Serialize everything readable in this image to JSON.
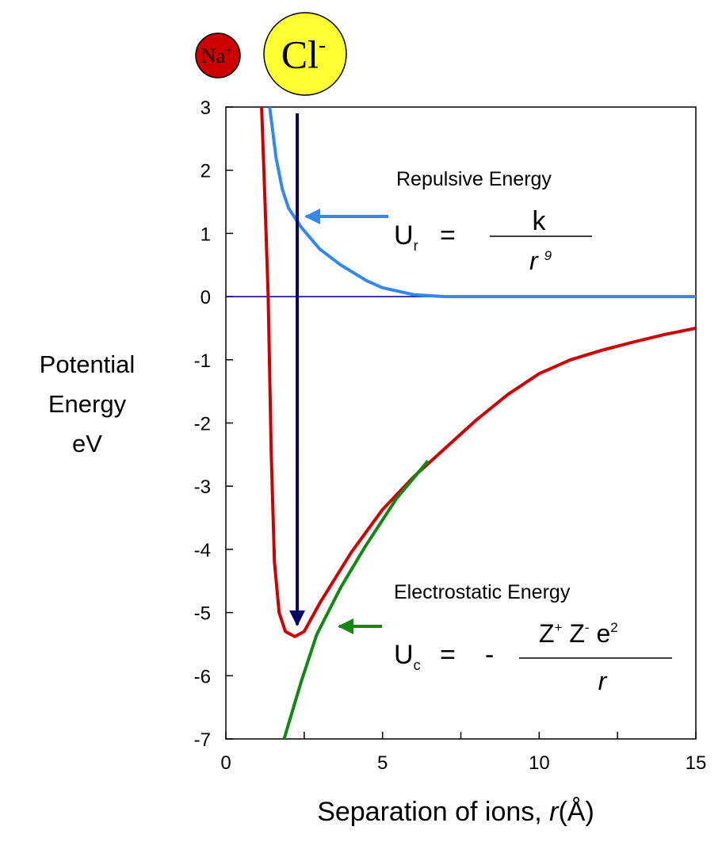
{
  "chart_data": {
    "type": "line",
    "ions": [
      {
        "label": "Na",
        "charge": "+",
        "color": "#cc0000"
      },
      {
        "label": "Cl",
        "charge": "-",
        "color": "#ffff33"
      }
    ],
    "ylabel": [
      "Potential",
      "Energy",
      "eV"
    ],
    "xlabel": {
      "text": "Separation of ions, ",
      "symbol": "r",
      "unit": "(Å)"
    },
    "xlim": [
      0,
      15
    ],
    "xticks": [
      0,
      5,
      10,
      15
    ],
    "xminorticks": [
      2.5,
      7.5,
      12.5
    ],
    "ylim": [
      -7,
      3
    ],
    "yticks": [
      -7,
      -6,
      -5,
      -4,
      -3,
      -2,
      -1,
      0,
      1,
      2,
      3
    ],
    "zero_line": true,
    "series": [
      {
        "color": "#3388ee",
        "x": [
          1.4,
          1.6,
          1.8,
          2,
          2.4,
          3,
          3.67,
          4.5,
          5,
          6,
          7,
          8,
          10,
          12,
          15
        ],
        "values": [
          3,
          2.2,
          1.7,
          1.4,
          1.1,
          0.75,
          0.5,
          0.25,
          0.14,
          0.03,
          0,
          0,
          0,
          0,
          0
        ]
      },
      {
        "color": "#cc0000",
        "x": [
          1.14,
          1.25,
          1.35,
          1.45,
          1.55,
          1.7,
          1.9,
          2.2,
          2.5,
          3,
          4,
          5,
          6,
          7,
          8,
          9,
          10,
          11,
          12,
          13,
          14,
          15
        ],
        "values": [
          3,
          1.5,
          0,
          -2.5,
          -4.2,
          -5.0,
          -5.3,
          -5.38,
          -5.3,
          -4.85,
          -4.05,
          -3.37,
          -2.85,
          -2.4,
          -1.95,
          -1.55,
          -1.22,
          -1.0,
          -0.85,
          -0.72,
          -0.6,
          -0.5
        ]
      },
      {
        "color": "#118811",
        "x": [
          1.86,
          2.4,
          2.9,
          3.67,
          4.43,
          5.44,
          6.45
        ],
        "values": [
          -7,
          -6.1,
          -5.35,
          -4.6,
          -3.97,
          -3.2,
          -2.6
        ]
      }
    ],
    "annotations": {
      "repulsive": {
        "title": "Repulsive Energy",
        "lhs": "U",
        "sub": "r",
        "eq": "=",
        "numerator": "k",
        "denominator": "r",
        "power": "9"
      },
      "electrostatic": {
        "title": "Electrostatic Energy",
        "lhs": "U",
        "sub": "c",
        "eq": "=",
        "sign": "-",
        "numerator": [
          "Z",
          "+",
          " Z",
          "-",
          " e",
          "2"
        ],
        "denominator": "r"
      }
    }
  }
}
